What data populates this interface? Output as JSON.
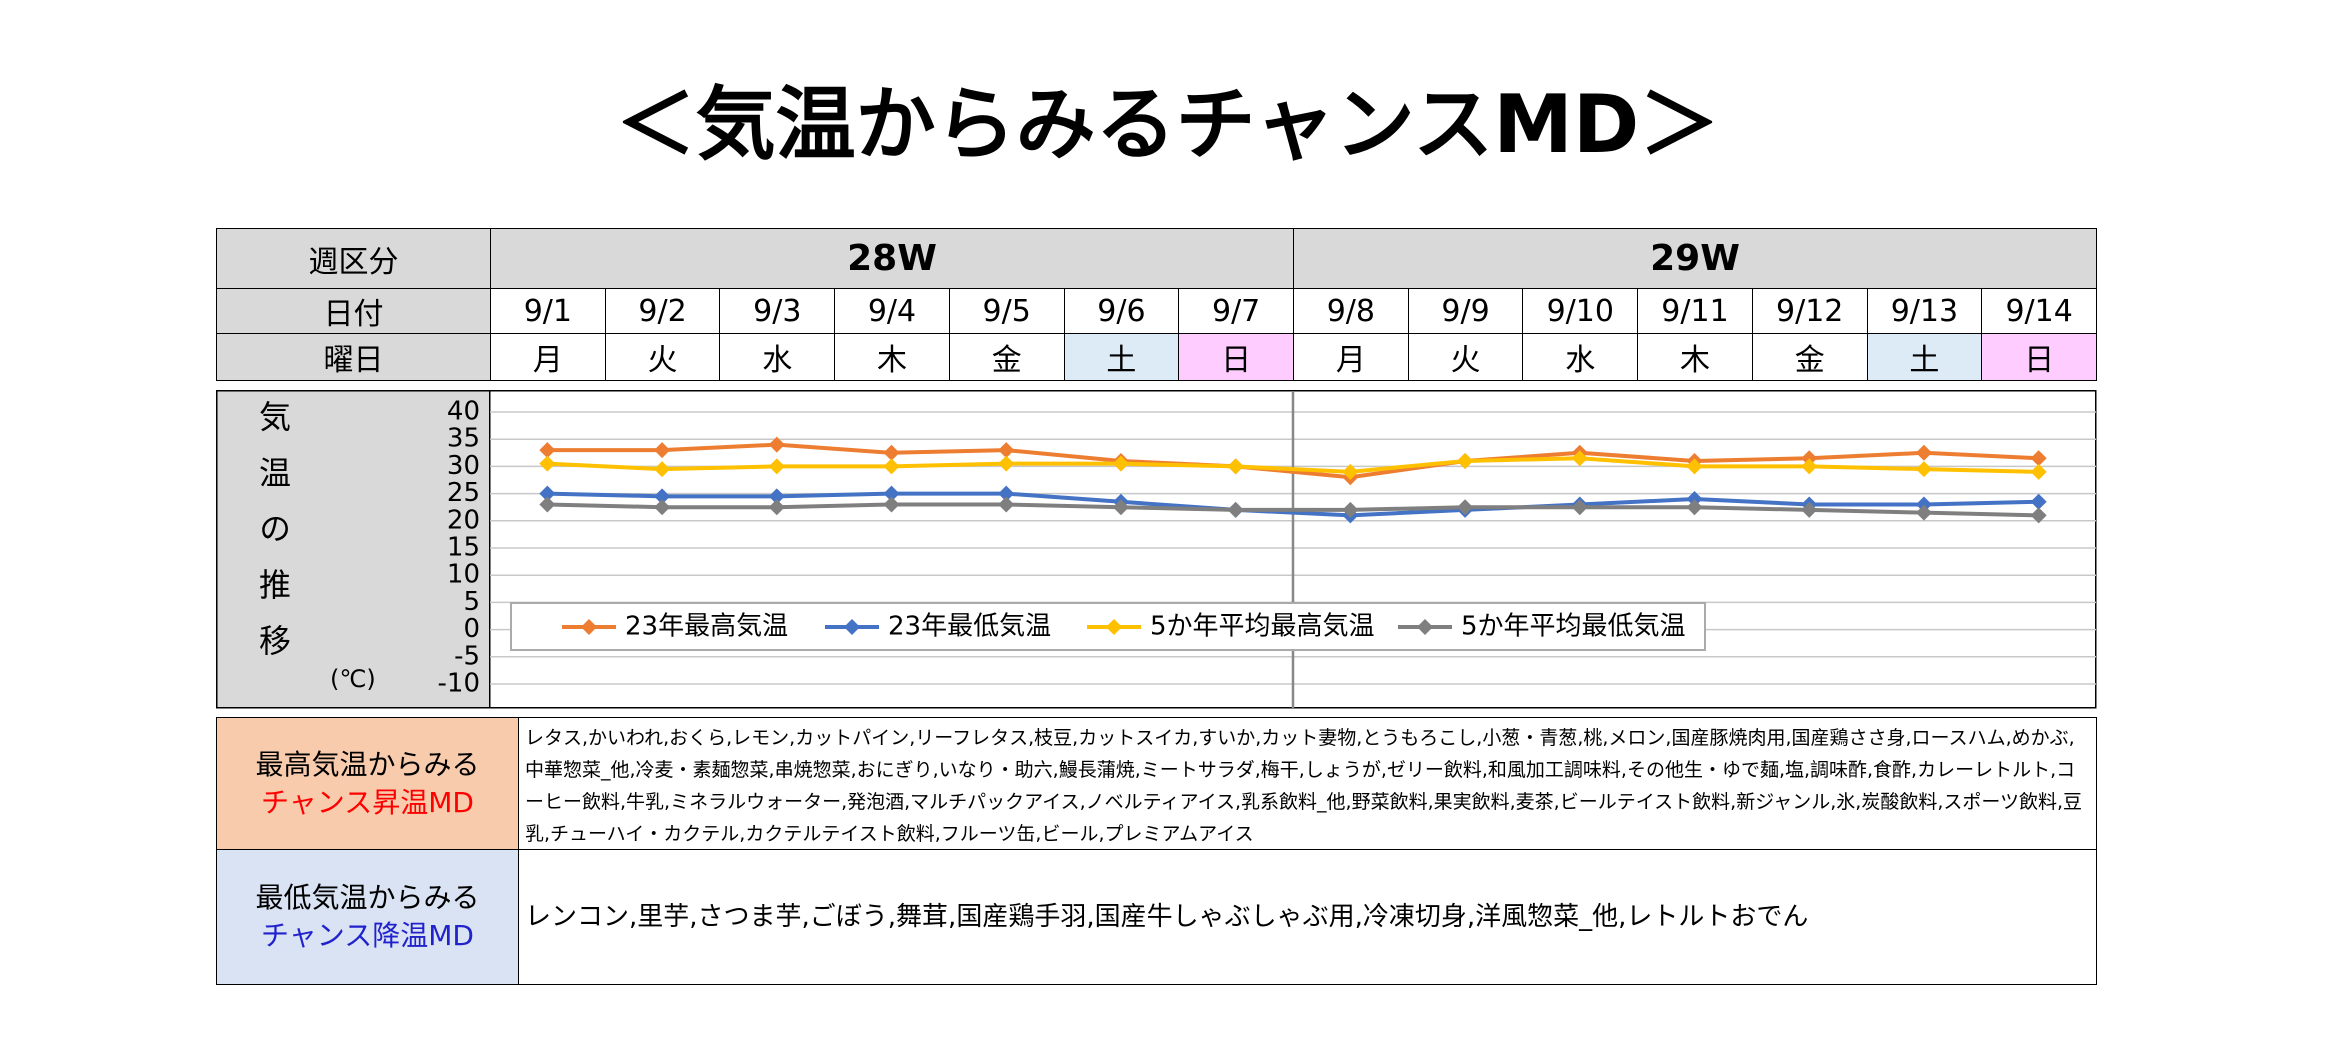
{
  "title": "＜気温からみるチャンスMD＞",
  "header": {
    "labels": [
      "週区分",
      "日付",
      "曜日"
    ],
    "weeks": [
      "28W",
      "29W"
    ],
    "dates": [
      "9/1",
      "9/2",
      "9/3",
      "9/4",
      "9/5",
      "9/6",
      "9/7",
      "9/8",
      "9/9",
      "9/10",
      "9/11",
      "9/12",
      "9/13",
      "9/14"
    ],
    "weekdays": [
      "月",
      "火",
      "水",
      "木",
      "金",
      "土",
      "日",
      "月",
      "火",
      "水",
      "木",
      "金",
      "土",
      "日"
    ]
  },
  "chart_data": {
    "type": "line",
    "y_label": "気温の推移",
    "y_unit": "(℃)",
    "ylim": [
      -10,
      40
    ],
    "yticks": [
      40,
      35,
      30,
      25,
      20,
      15,
      10,
      5,
      0,
      -5,
      -10
    ],
    "grid": true,
    "series": [
      {
        "name": "23年最高気温",
        "color": "#ed7d31",
        "values": [
          33,
          33,
          34,
          32.5,
          33,
          31,
          30,
          28,
          31,
          32.5,
          31,
          31.5,
          32.5,
          31.5
        ]
      },
      {
        "name": "23年最低気温",
        "color": "#4472c4",
        "values": [
          25,
          24.5,
          24.5,
          25,
          25,
          23.5,
          22,
          21,
          22,
          23,
          24,
          23,
          23,
          23.5
        ]
      },
      {
        "name": "5か年平均最高気温",
        "color": "#ffc000",
        "values": [
          30.5,
          29.5,
          30,
          30,
          30.5,
          30.5,
          30,
          29,
          31,
          31.5,
          30,
          30,
          29.5,
          29
        ]
      },
      {
        "name": "5か年平均最低気温",
        "color": "#7f7f7f",
        "values": [
          23,
          22.5,
          22.5,
          23,
          23,
          22.5,
          22,
          22,
          22.5,
          22.5,
          22.5,
          22,
          21.5,
          21
        ]
      }
    ]
  },
  "md_rows": [
    {
      "label": [
        "最高気温からみる",
        "チャンス昇温MD"
      ],
      "items": "レタス,かいわれ,おくら,レモン,カットパイン,リーフレタス,枝豆,カットスイカ,すいか,カット妻物,とうもろこし,小葱・青葱,桃,メロン,国産豚焼肉用,国産鶏ささ身,ロースハム,めかぶ,中華惣菜_他,冷麦・素麺惣菜,串焼惣菜,おにぎり,いなり・助六,鰻長蒲焼,ミートサラダ,梅干,しょうが,ゼリー飲料,和風加工調味料,その他生・ゆで麺,塩,調味酢,食酢,カレーレトルト,コーヒー飲料,牛乳,ミネラルウォーター,発泡酒,マルチパックアイス,ノベルティアイス,乳系飲料_他,野菜飲料,果実飲料,麦茶,ビールテイスト飲料,新ジャンル,氷,炭酸飲料,スポーツ飲料,豆乳,チューハイ・カクテル,カクテルテイスト飲料,フルーツ缶,ビール,プレミアムアイス"
    },
    {
      "label": [
        "最低気温からみる",
        "チャンス降温MD"
      ],
      "items": "レンコン,里芋,さつま芋,ごぼう,舞茸,国産鶏手羽,国産牛しゃぶしゃぶ用,冷凍切身,洋風惣菜_他,レトルトおでん"
    }
  ]
}
